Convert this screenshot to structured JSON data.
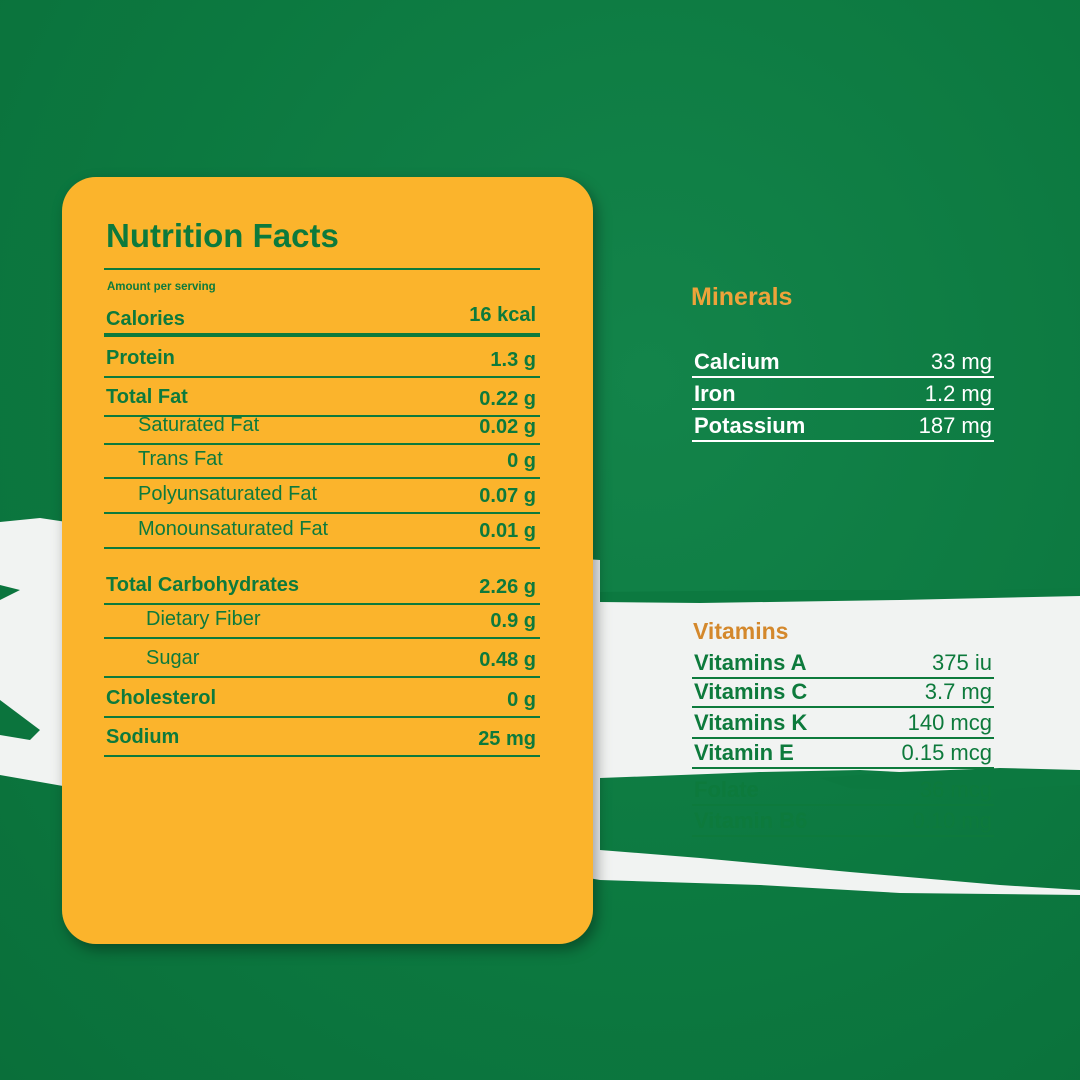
{
  "colors": {
    "background": "#0c7940",
    "card": "#fbb42c",
    "text_green": "#0d7a3c",
    "minerals_heading": "#eea33a",
    "vitamins_heading": "#d4882c",
    "stripe": "#f1f3f2"
  },
  "nutrition": {
    "title": "Nutrition Facts",
    "amount_label": "Amount per serving",
    "rows": [
      {
        "label": "Calories",
        "value": "16 kcal"
      },
      {
        "label": "Protein",
        "value": "1.3 g"
      },
      {
        "label": "Total Fat",
        "value": "0.22 g"
      },
      {
        "label": "Saturated Fat",
        "value": "0.02 g"
      },
      {
        "label": "Trans Fat",
        "value": "0 g"
      },
      {
        "label": "Polyunsaturated Fat",
        "value": "0.07 g"
      },
      {
        "label": "Monounsaturated Fat",
        "value": "0.01 g"
      },
      {
        "label": "Total Carbohydrates",
        "value": "2.26 g"
      },
      {
        "label": "Dietary Fiber",
        "value": "0.9 g"
      },
      {
        "label": "Sugar",
        "value": "0.48 g"
      },
      {
        "label": "Cholesterol",
        "value": "0 g"
      },
      {
        "label": "Sodium",
        "value": "25 mg"
      }
    ]
  },
  "minerals": {
    "title": "Minerals",
    "rows": [
      {
        "label": "Calcium",
        "value": "33 mg"
      },
      {
        "label": "Iron",
        "value": "1.2 mg"
      },
      {
        "label": "Potassium",
        "value": "187 mg"
      }
    ]
  },
  "vitamins": {
    "title": "Vitamins",
    "rows": [
      {
        "label": "Vitamins A",
        "value": "375 iu"
      },
      {
        "label": "Vitamins C",
        "value": "3.7 mg"
      },
      {
        "label": "Vitamins K",
        "value": "140 mcg"
      },
      {
        "label": "Vitamin E",
        "value": "0.15 mcg"
      },
      {
        "label": "Folate",
        "value": "36 mcg"
      },
      {
        "label": "Vitamin B6",
        "value": "0.10 mg"
      }
    ]
  }
}
